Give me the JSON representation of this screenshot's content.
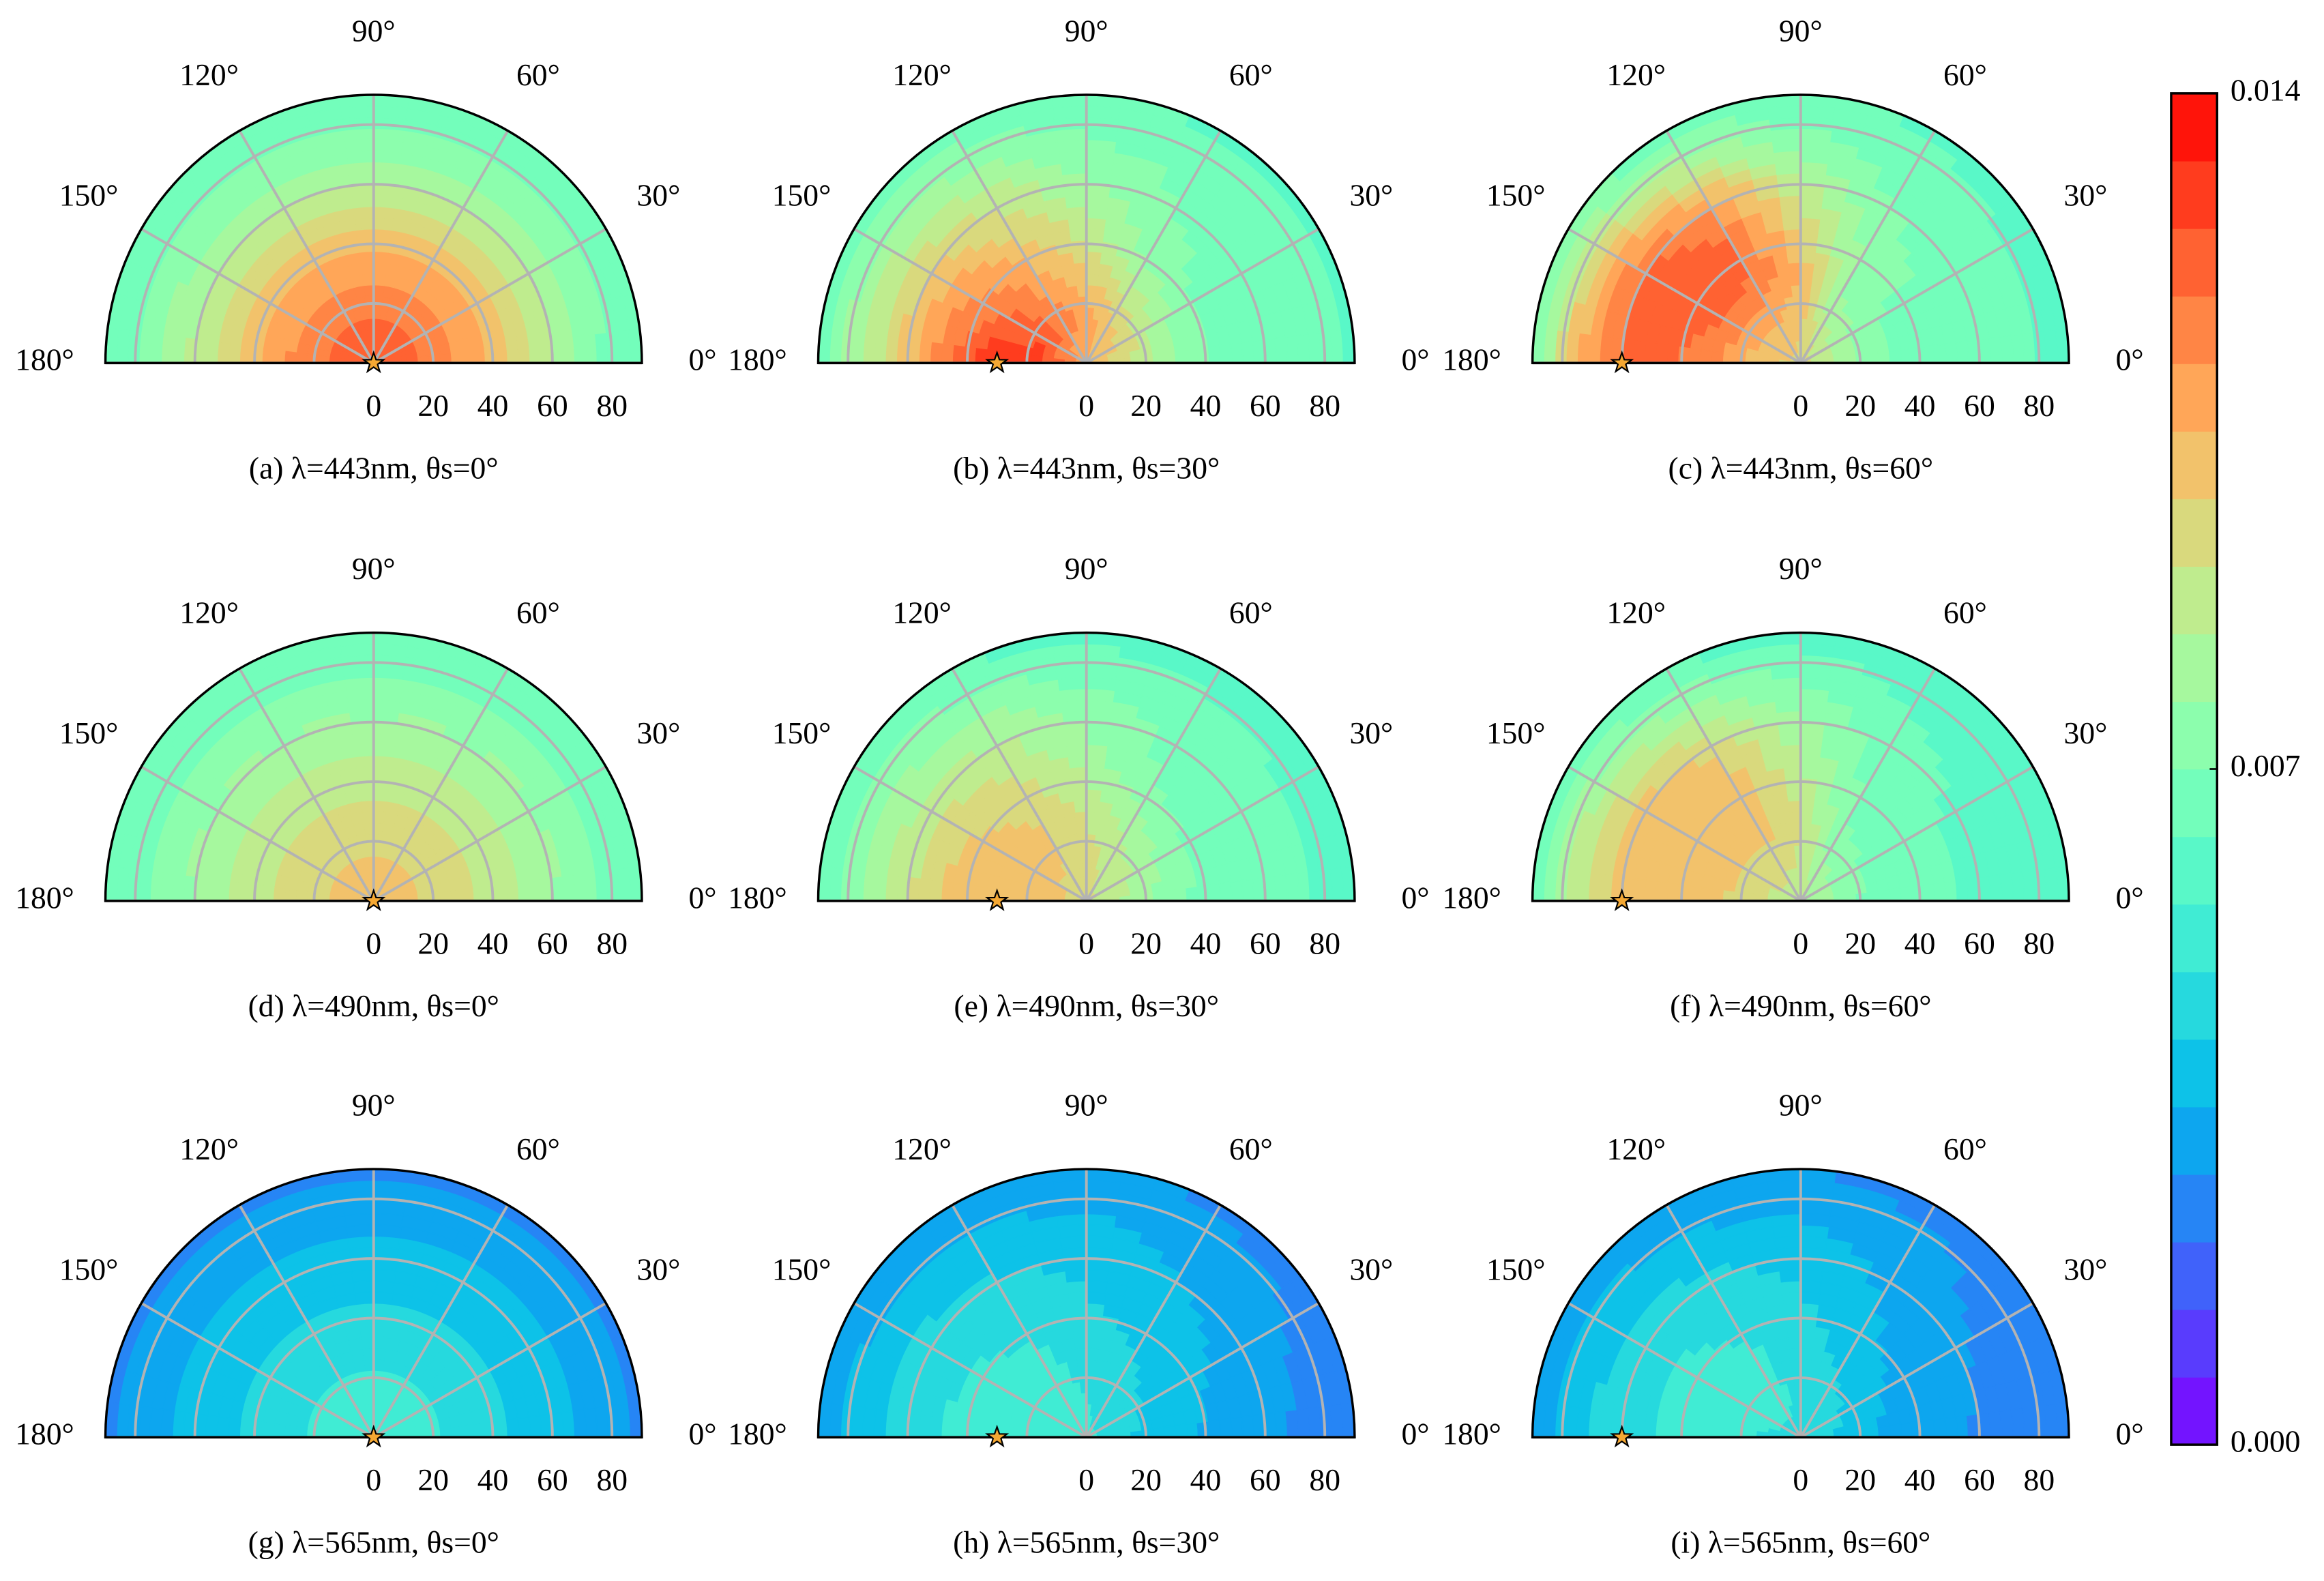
{
  "chart_data": [
    {
      "type": "polar_contour",
      "title": "(a) λ=443nm, θs=0°",
      "theta_ticks": [
        {
          "value": 0,
          "label": "0°"
        },
        {
          "value": 30,
          "label": "30°"
        },
        {
          "value": 60,
          "label": "60°"
        },
        {
          "value": 90,
          "label": "90°"
        },
        {
          "value": 120,
          "label": "120°"
        },
        {
          "value": 150,
          "label": "150°"
        },
        {
          "value": 180,
          "label": "180°"
        }
      ],
      "rlim": [
        0,
        90
      ],
      "rticks": [
        0,
        20,
        40,
        60,
        80
      ],
      "azimuth": [
        0,
        30,
        60,
        90,
        120,
        150,
        180
      ],
      "zenith": [
        0,
        15,
        30,
        45,
        60,
        75,
        90
      ],
      "values": [
        [
          0.0125,
          0.012,
          0.011,
          0.0097,
          0.0084,
          0.0071,
          0.0063
        ],
        [
          0.0125,
          0.012,
          0.011,
          0.0097,
          0.0084,
          0.0071,
          0.0063
        ],
        [
          0.0125,
          0.012,
          0.011,
          0.0098,
          0.0085,
          0.0072,
          0.0064
        ],
        [
          0.0125,
          0.012,
          0.011,
          0.0098,
          0.0085,
          0.0072,
          0.0064
        ],
        [
          0.0125,
          0.012,
          0.011,
          0.0098,
          0.0085,
          0.0072,
          0.0064
        ],
        [
          0.0125,
          0.012,
          0.011,
          0.0098,
          0.0085,
          0.0072,
          0.0064
        ],
        [
          0.0125,
          0.012,
          0.0111,
          0.0099,
          0.0086,
          0.0072,
          0.0064
        ]
      ],
      "sun": {
        "zenith": 0,
        "azimuth": 180
      }
    },
    {
      "type": "polar_contour",
      "title": "(b) λ=443nm, θs=30°",
      "theta_ticks": [
        {
          "value": 0,
          "label": "0°"
        },
        {
          "value": 30,
          "label": "30°"
        },
        {
          "value": 60,
          "label": "60°"
        },
        {
          "value": 90,
          "label": "90°"
        },
        {
          "value": 120,
          "label": "120°"
        },
        {
          "value": 150,
          "label": "150°"
        },
        {
          "value": 180,
          "label": "180°"
        }
      ],
      "rlim": [
        0,
        90
      ],
      "rticks": [
        0,
        20,
        40,
        60,
        80
      ],
      "azimuth": [
        0,
        30,
        60,
        90,
        120,
        150,
        180
      ],
      "zenith": [
        0,
        15,
        30,
        45,
        60,
        75,
        90
      ],
      "values": [
        [
          0.0105,
          0.009,
          0.0075,
          0.0068,
          0.0068,
          0.0066,
          0.0062
        ],
        [
          0.0105,
          0.0095,
          0.0078,
          0.0068,
          0.0068,
          0.0066,
          0.0062
        ],
        [
          0.0105,
          0.01,
          0.0085,
          0.0072,
          0.007,
          0.0068,
          0.0062
        ],
        [
          0.0105,
          0.011,
          0.0098,
          0.0088,
          0.0078,
          0.007,
          0.0063
        ],
        [
          0.0105,
          0.0115,
          0.011,
          0.01,
          0.009,
          0.0078,
          0.0065
        ],
        [
          0.0105,
          0.0125,
          0.012,
          0.0112,
          0.0098,
          0.0082,
          0.0066
        ],
        [
          0.0105,
          0.0128,
          0.0135,
          0.012,
          0.0102,
          0.0085,
          0.0068
        ]
      ],
      "sun": {
        "zenith": 30,
        "azimuth": 180
      }
    },
    {
      "type": "polar_contour",
      "title": "(c) λ=443nm, θs=60°",
      "theta_ticks": [
        {
          "value": 0,
          "label": "0°"
        },
        {
          "value": 30,
          "label": "30°"
        },
        {
          "value": 60,
          "label": "60°"
        },
        {
          "value": 90,
          "label": "90°"
        },
        {
          "value": 120,
          "label": "120°"
        },
        {
          "value": 150,
          "label": "150°"
        },
        {
          "value": 180,
          "label": "180°"
        }
      ],
      "rlim": [
        0,
        90
      ],
      "rticks": [
        0,
        20,
        40,
        60,
        80
      ],
      "azimuth": [
        0,
        30,
        60,
        90,
        120,
        150,
        180
      ],
      "zenith": [
        0,
        15,
        30,
        45,
        60,
        75,
        90
      ],
      "values": [
        [
          0.0095,
          0.0078,
          0.007,
          0.0068,
          0.0066,
          0.0064,
          0.006
        ],
        [
          0.0095,
          0.008,
          0.007,
          0.0068,
          0.0066,
          0.0064,
          0.006
        ],
        [
          0.0095,
          0.0085,
          0.0075,
          0.0075,
          0.007,
          0.0066,
          0.0062
        ],
        [
          0.0095,
          0.01,
          0.0105,
          0.0095,
          0.0085,
          0.0072,
          0.0063
        ],
        [
          0.0095,
          0.0105,
          0.0118,
          0.012,
          0.011,
          0.0085,
          0.0066
        ],
        [
          0.0095,
          0.0105,
          0.012,
          0.0125,
          0.0122,
          0.0098,
          0.0068
        ],
        [
          0.0095,
          0.0102,
          0.0115,
          0.012,
          0.012,
          0.0105,
          0.007
        ]
      ],
      "sun": {
        "zenith": 60,
        "azimuth": 180
      }
    },
    {
      "type": "polar_contour",
      "title": "(d) λ=490nm, θs=0°",
      "theta_ticks": [
        {
          "value": 0,
          "label": "0°"
        },
        {
          "value": 30,
          "label": "30°"
        },
        {
          "value": 60,
          "label": "60°"
        },
        {
          "value": 90,
          "label": "90°"
        },
        {
          "value": 120,
          "label": "120°"
        },
        {
          "value": 150,
          "label": "150°"
        },
        {
          "value": 180,
          "label": "180°"
        }
      ],
      "rlim": [
        0,
        90
      ],
      "rticks": [
        0,
        20,
        40,
        60,
        80
      ],
      "azimuth": [
        0,
        30,
        60,
        90,
        120,
        150,
        180
      ],
      "zenith": [
        0,
        15,
        30,
        45,
        60,
        75,
        90
      ],
      "values": [
        [
          0.0102,
          0.0098,
          0.0092,
          0.0085,
          0.0078,
          0.007,
          0.0063
        ],
        [
          0.0102,
          0.0098,
          0.0092,
          0.0085,
          0.0078,
          0.007,
          0.0063
        ],
        [
          0.0102,
          0.0098,
          0.0092,
          0.0085,
          0.0078,
          0.007,
          0.0063
        ],
        [
          0.0102,
          0.0098,
          0.0092,
          0.0085,
          0.0078,
          0.007,
          0.0063
        ],
        [
          0.0102,
          0.0098,
          0.0092,
          0.0085,
          0.0078,
          0.007,
          0.0063
        ],
        [
          0.0102,
          0.0098,
          0.0092,
          0.0085,
          0.0078,
          0.007,
          0.0063
        ],
        [
          0.0102,
          0.0098,
          0.0092,
          0.0085,
          0.0078,
          0.007,
          0.0063
        ]
      ],
      "sun": {
        "zenith": 0,
        "azimuth": 180
      }
    },
    {
      "type": "polar_contour",
      "title": "(e) λ=490nm, θs=30°",
      "theta_ticks": [
        {
          "value": 0,
          "label": "0°"
        },
        {
          "value": 30,
          "label": "30°"
        },
        {
          "value": 60,
          "label": "60°"
        },
        {
          "value": 90,
          "label": "90°"
        },
        {
          "value": 120,
          "label": "120°"
        },
        {
          "value": 150,
          "label": "150°"
        },
        {
          "value": 180,
          "label": "180°"
        }
      ],
      "rlim": [
        0,
        90
      ],
      "rticks": [
        0,
        20,
        40,
        60,
        80
      ],
      "azimuth": [
        0,
        30,
        60,
        90,
        120,
        150,
        180
      ],
      "zenith": [
        0,
        15,
        30,
        45,
        60,
        75,
        90
      ],
      "values": [
        [
          0.0092,
          0.0082,
          0.0072,
          0.0066,
          0.0065,
          0.0063,
          0.006
        ],
        [
          0.0092,
          0.0085,
          0.0074,
          0.0066,
          0.0065,
          0.0063,
          0.006
        ],
        [
          0.0092,
          0.0088,
          0.008,
          0.007,
          0.0068,
          0.0065,
          0.006
        ],
        [
          0.0092,
          0.0095,
          0.009,
          0.0082,
          0.0075,
          0.0068,
          0.0061
        ],
        [
          0.0092,
          0.0098,
          0.0098,
          0.0092,
          0.0085,
          0.0074,
          0.0062
        ],
        [
          0.0092,
          0.0102,
          0.0102,
          0.0098,
          0.0088,
          0.0076,
          0.0063
        ],
        [
          0.0092,
          0.0103,
          0.0105,
          0.01,
          0.009,
          0.0078,
          0.0064
        ]
      ],
      "sun": {
        "zenith": 30,
        "azimuth": 180
      }
    },
    {
      "type": "polar_contour",
      "title": "(f) λ=490nm, θs=60°",
      "theta_ticks": [
        {
          "value": 0,
          "label": "0°"
        },
        {
          "value": 30,
          "label": "30°"
        },
        {
          "value": 60,
          "label": "60°"
        },
        {
          "value": 90,
          "label": "90°"
        },
        {
          "value": 120,
          "label": "120°"
        },
        {
          "value": 150,
          "label": "150°"
        },
        {
          "value": 180,
          "label": "180°"
        }
      ],
      "rlim": [
        0,
        90
      ],
      "rticks": [
        0,
        20,
        40,
        60,
        80
      ],
      "azimuth": [
        0,
        30,
        60,
        90,
        120,
        150,
        180
      ],
      "zenith": [
        0,
        15,
        30,
        45,
        60,
        75,
        90
      ],
      "values": [
        [
          0.0085,
          0.0072,
          0.0066,
          0.0064,
          0.0062,
          0.006,
          0.0058
        ],
        [
          0.0085,
          0.0074,
          0.0066,
          0.0064,
          0.0062,
          0.006,
          0.0058
        ],
        [
          0.0085,
          0.0078,
          0.007,
          0.0068,
          0.0066,
          0.0062,
          0.0059
        ],
        [
          0.0085,
          0.009,
          0.0092,
          0.0085,
          0.0078,
          0.0068,
          0.006
        ],
        [
          0.0085,
          0.0095,
          0.0102,
          0.0102,
          0.0095,
          0.0078,
          0.0062
        ],
        [
          0.0085,
          0.0095,
          0.0103,
          0.0105,
          0.0102,
          0.0085,
          0.0064
        ],
        [
          0.0085,
          0.0093,
          0.01,
          0.0103,
          0.0102,
          0.009,
          0.0065
        ]
      ],
      "sun": {
        "zenith": 60,
        "azimuth": 180
      }
    },
    {
      "type": "polar_contour",
      "title": "(g) λ=565nm, θs=0°",
      "theta_ticks": [
        {
          "value": 0,
          "label": "0°"
        },
        {
          "value": 30,
          "label": "30°"
        },
        {
          "value": 60,
          "label": "60°"
        },
        {
          "value": 90,
          "label": "90°"
        },
        {
          "value": 120,
          "label": "120°"
        },
        {
          "value": 150,
          "label": "150°"
        },
        {
          "value": 180,
          "label": "180°"
        }
      ],
      "rlim": [
        0,
        90
      ],
      "rticks": [
        0,
        20,
        40,
        60,
        80
      ],
      "azimuth": [
        0,
        30,
        60,
        90,
        120,
        150,
        180
      ],
      "zenith": [
        0,
        15,
        30,
        45,
        60,
        75,
        90
      ],
      "values": [
        [
          0.0053,
          0.0051,
          0.0047,
          0.0042,
          0.0037,
          0.0032,
          0.0026
        ],
        [
          0.0053,
          0.0051,
          0.0047,
          0.0042,
          0.0037,
          0.0032,
          0.0026
        ],
        [
          0.0053,
          0.0051,
          0.0047,
          0.0042,
          0.0037,
          0.0032,
          0.0026
        ],
        [
          0.0053,
          0.0051,
          0.0047,
          0.0042,
          0.0037,
          0.0032,
          0.0026
        ],
        [
          0.0053,
          0.0051,
          0.0047,
          0.0042,
          0.0037,
          0.0032,
          0.0026
        ],
        [
          0.0053,
          0.0051,
          0.0047,
          0.0042,
          0.0037,
          0.0032,
          0.0026
        ],
        [
          0.0053,
          0.0051,
          0.0047,
          0.0042,
          0.0037,
          0.0032,
          0.0026
        ]
      ],
      "sun": {
        "zenith": 0,
        "azimuth": 180
      }
    },
    {
      "type": "polar_contour",
      "title": "(h) λ=565nm, θs=30°",
      "theta_ticks": [
        {
          "value": 0,
          "label": "0°"
        },
        {
          "value": 30,
          "label": "30°"
        },
        {
          "value": 60,
          "label": "60°"
        },
        {
          "value": 90,
          "label": "90°"
        },
        {
          "value": 120,
          "label": "120°"
        },
        {
          "value": 150,
          "label": "150°"
        },
        {
          "value": 180,
          "label": "180°"
        }
      ],
      "rlim": [
        0,
        90
      ],
      "rticks": [
        0,
        20,
        40,
        60,
        80
      ],
      "azimuth": [
        0,
        30,
        60,
        90,
        120,
        150,
        180
      ],
      "zenith": [
        0,
        15,
        30,
        45,
        60,
        75,
        90
      ],
      "values": [
        [
          0.005,
          0.0042,
          0.0036,
          0.0034,
          0.003,
          0.0026,
          0.0024
        ],
        [
          0.005,
          0.0044,
          0.0038,
          0.0035,
          0.0032,
          0.0028,
          0.0025
        ],
        [
          0.005,
          0.0046,
          0.0042,
          0.0038,
          0.0035,
          0.0032,
          0.0027
        ],
        [
          0.005,
          0.0049,
          0.0046,
          0.0043,
          0.0039,
          0.0035,
          0.0028
        ],
        [
          0.005,
          0.0051,
          0.005,
          0.0047,
          0.0043,
          0.0037,
          0.0029
        ],
        [
          0.005,
          0.0052,
          0.0052,
          0.0049,
          0.0045,
          0.0038,
          0.0029
        ],
        [
          0.005,
          0.0052,
          0.0052,
          0.005,
          0.0046,
          0.0039,
          0.003
        ]
      ],
      "sun": {
        "zenith": 30,
        "azimuth": 180
      }
    },
    {
      "type": "polar_contour",
      "title": "(i) λ=565nm, θs=60°",
      "theta_ticks": [
        {
          "value": 0,
          "label": "0°"
        },
        {
          "value": 30,
          "label": "30°"
        },
        {
          "value": 60,
          "label": "60°"
        },
        {
          "value": 90,
          "label": "90°"
        },
        {
          "value": 120,
          "label": "120°"
        },
        {
          "value": 150,
          "label": "150°"
        },
        {
          "value": 180,
          "label": "180°"
        }
      ],
      "rlim": [
        0,
        90
      ],
      "rticks": [
        0,
        20,
        40,
        60,
        80
      ],
      "azimuth": [
        0,
        30,
        60,
        90,
        120,
        150,
        180
      ],
      "zenith": [
        0,
        15,
        30,
        45,
        60,
        75,
        90
      ],
      "values": [
        [
          0.0048,
          0.004,
          0.0033,
          0.003,
          0.0027,
          0.0025,
          0.0023
        ],
        [
          0.0048,
          0.0042,
          0.0035,
          0.0032,
          0.0029,
          0.0026,
          0.0024
        ],
        [
          0.0048,
          0.0045,
          0.004,
          0.0036,
          0.0034,
          0.003,
          0.0026
        ],
        [
          0.0048,
          0.0048,
          0.0046,
          0.0043,
          0.0039,
          0.0034,
          0.0028
        ],
        [
          0.0048,
          0.005,
          0.005,
          0.0048,
          0.0044,
          0.0037,
          0.0029
        ],
        [
          0.0048,
          0.005,
          0.0051,
          0.005,
          0.0046,
          0.0039,
          0.003
        ],
        [
          0.0048,
          0.0049,
          0.005,
          0.005,
          0.0046,
          0.004,
          0.003
        ]
      ],
      "sun": {
        "zenith": 60,
        "azimuth": 180
      }
    },
    {
      "type": "colorbar",
      "colormap": "rainbow",
      "clim": [
        0,
        0.014
      ],
      "levels": [
        0,
        0.0007,
        0.0014,
        0.0021,
        0.0028,
        0.0035,
        0.0042,
        0.0049,
        0.0056,
        0.0063,
        0.007,
        0.0077,
        0.0084,
        0.0091,
        0.0098,
        0.0105,
        0.0112,
        0.0119,
        0.0126,
        0.0133,
        0.014
      ],
      "ticks": [
        {
          "value": 0,
          "label": "0.000"
        },
        0.007,
        0.014
      ]
    }
  ]
}
